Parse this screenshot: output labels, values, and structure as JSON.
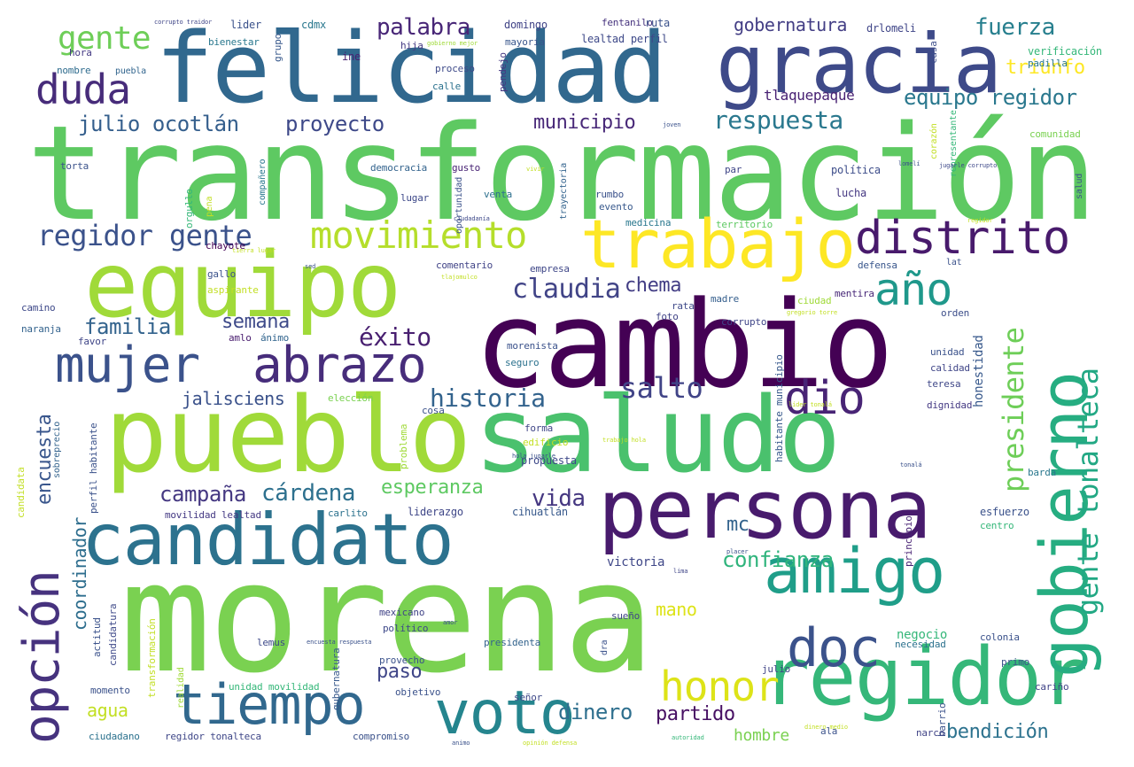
{
  "words": [
    {
      "text": "morena",
      "color": "#7ad151"
    },
    {
      "text": "transformación",
      "color": "#5ec962"
    },
    {
      "text": "cambio",
      "color": "#440154"
    },
    {
      "text": "felicidad",
      "color": "#31688e"
    },
    {
      "text": "saludo",
      "color": "#4ac16d"
    },
    {
      "text": "pueblo",
      "color": "#a0da39"
    },
    {
      "text": "gracia",
      "color": "#3e4a89"
    },
    {
      "text": "equipo",
      "color": "#a0da39"
    },
    {
      "text": "persona",
      "color": "#481b6d"
    },
    {
      "text": "candidato",
      "color": "#2c728e"
    },
    {
      "text": "regidor",
      "color": "#35b779"
    },
    {
      "text": "gobierno",
      "color": "#26ad81"
    },
    {
      "text": "trabajo",
      "color": "#fde725"
    },
    {
      "text": "amigo",
      "color": "#1f9e89"
    },
    {
      "text": "abrazo",
      "color": "#472d7b"
    },
    {
      "text": "mujer",
      "color": "#3b528b"
    },
    {
      "text": "tiempo",
      "color": "#31688e"
    },
    {
      "text": "voto",
      "color": "#25858e"
    },
    {
      "text": "opción",
      "color": "#46327e"
    },
    {
      "text": "distrito",
      "color": "#481a6c"
    },
    {
      "text": "doc",
      "color": "#3b528b"
    },
    {
      "text": "duda",
      "color": "#472c7a"
    },
    {
      "text": "movimiento",
      "color": "#b5de2b"
    },
    {
      "text": "año",
      "color": "#1f988b"
    },
    {
      "text": "dio",
      "color": "#482475"
    },
    {
      "text": "honor",
      "color": "#dde318"
    },
    {
      "text": "presidente",
      "color": "#6ece58"
    },
    {
      "text": "gente tonalteca",
      "color": "#22a884"
    },
    {
      "text": "regidor gente",
      "color": "#3b528b"
    },
    {
      "text": "claudia",
      "color": "#414487"
    },
    {
      "text": "gente",
      "color": "#6ece58"
    },
    {
      "text": "palabra",
      "color": "#482677"
    },
    {
      "text": "fuerza",
      "color": "#277f8e"
    },
    {
      "text": "gobernatura",
      "color": "#433e85"
    },
    {
      "text": "triunfo",
      "color": "#fde725"
    },
    {
      "text": "equipo regidor",
      "color": "#2a788e"
    },
    {
      "text": "julio ocotlán",
      "color": "#355f8d"
    },
    {
      "text": "proyecto",
      "color": "#3e4989"
    },
    {
      "text": "municipio",
      "color": "#482878"
    },
    {
      "text": "respuesta",
      "color": "#2a788e"
    },
    {
      "text": "éxito",
      "color": "#481f70"
    },
    {
      "text": "salto",
      "color": "#414487"
    },
    {
      "text": "historia",
      "color": "#33638d"
    },
    {
      "text": "familia",
      "color": "#33638d"
    },
    {
      "text": "semana",
      "color": "#3e4a89"
    },
    {
      "text": "chema",
      "color": "#433e85"
    },
    {
      "text": "jalisciens",
      "color": "#3b528b"
    },
    {
      "text": "encuesta",
      "color": "#39568c"
    },
    {
      "text": "campaña",
      "color": "#453882"
    },
    {
      "text": "cárdena",
      "color": "#2d708e"
    },
    {
      "text": "esperanza",
      "color": "#5ec962"
    },
    {
      "text": "vida",
      "color": "#453781"
    },
    {
      "text": "coordinador",
      "color": "#2e6e8e"
    },
    {
      "text": "confianza",
      "color": "#2fb47c"
    },
    {
      "text": "mc",
      "color": "#33638d"
    },
    {
      "text": "mano",
      "color": "#dde318"
    },
    {
      "text": "paso",
      "color": "#404688"
    },
    {
      "text": "agua",
      "color": "#c2df23"
    },
    {
      "text": "dinero",
      "color": "#2e6f8e"
    },
    {
      "text": "partido",
      "color": "#471063"
    },
    {
      "text": "hombre",
      "color": "#7ad151"
    },
    {
      "text": "bendición",
      "color": "#2c728e"
    },
    {
      "text": "victoria",
      "color": "#3f4788"
    },
    {
      "text": "negocio",
      "color": "#35b779"
    },
    {
      "text": "honestidad",
      "color": "#38598c"
    },
    {
      "text": "tlaquepaque",
      "color": "#482173"
    },
    {
      "text": "lider",
      "color": "#3b528b"
    },
    {
      "text": "cdmx",
      "color": "#2a788e"
    },
    {
      "text": "domingo",
      "color": "#414487"
    },
    {
      "text": "fentanilo",
      "color": "#46337e"
    },
    {
      "text": "ruta",
      "color": "#3b528b"
    },
    {
      "text": "drlomeli",
      "color": "#404688"
    },
    {
      "text": "bienestar",
      "color": "#2a788e"
    },
    {
      "text": "grupo",
      "color": "#38598c"
    },
    {
      "text": "hija",
      "color": "#443a83"
    },
    {
      "text": "mayoría",
      "color": "#39568c"
    },
    {
      "text": "lealtad perfil",
      "color": "#3e4989"
    },
    {
      "text": "verificación",
      "color": "#35b779"
    },
    {
      "text": "hora",
      "color": "#443983"
    },
    {
      "text": "ine",
      "color": "#481f70"
    },
    {
      "text": "casa",
      "color": "#3d4e8a"
    },
    {
      "text": "padilla",
      "color": "#2a788e"
    },
    {
      "text": "nombre",
      "color": "#2f6c8e"
    },
    {
      "text": "puebla",
      "color": "#32658e"
    },
    {
      "text": "proceso",
      "color": "#3e4a89"
    },
    {
      "text": "pendejo",
      "color": "#453882"
    },
    {
      "text": "calle",
      "color": "#2c728e"
    },
    {
      "text": "comunidad",
      "color": "#7ad151"
    },
    {
      "text": "torta",
      "color": "#3b528b"
    },
    {
      "text": "compañero",
      "color": "#2a788e"
    },
    {
      "text": "democracia",
      "color": "#33638d"
    },
    {
      "text": "gusto",
      "color": "#482374"
    },
    {
      "text": "par",
      "color": "#404688"
    },
    {
      "text": "política",
      "color": "#3d4d8a"
    },
    {
      "text": "orgullo",
      "color": "#35b779"
    },
    {
      "text": "lugar",
      "color": "#3e4989"
    },
    {
      "text": "venta",
      "color": "#2d708e"
    },
    {
      "text": "rumbo",
      "color": "#3b528b"
    },
    {
      "text": "evento",
      "color": "#38598c"
    },
    {
      "text": "lucha",
      "color": "#453882"
    },
    {
      "text": "medicina",
      "color": "#2a788e"
    },
    {
      "text": "territorio",
      "color": "#5ec962"
    },
    {
      "text": "chayote",
      "color": "#440154"
    },
    {
      "text": "gallo",
      "color": "#3b528b"
    },
    {
      "text": "aspirante",
      "color": "#c2df23"
    },
    {
      "text": "comentario",
      "color": "#414487"
    },
    {
      "text": "empresa",
      "color": "#3f4788"
    },
    {
      "text": "defensa",
      "color": "#39568c"
    },
    {
      "text": "lat",
      "color": "#3b528b"
    },
    {
      "text": "camino",
      "color": "#3e4989"
    },
    {
      "text": "naranja",
      "color": "#33638d"
    },
    {
      "text": "favor",
      "color": "#404688"
    },
    {
      "text": "amlo",
      "color": "#481c6e"
    },
    {
      "text": "ánimo",
      "color": "#32658e"
    },
    {
      "text": "madre",
      "color": "#355f8d"
    },
    {
      "text": "ciudad",
      "color": "#a0da39"
    },
    {
      "text": "mentira",
      "color": "#482878"
    },
    {
      "text": "corrupto",
      "color": "#404688"
    },
    {
      "text": "rata",
      "color": "#3e4989"
    },
    {
      "text": "foto",
      "color": "#414487"
    },
    {
      "text": "morenista",
      "color": "#3b528b"
    },
    {
      "text": "seguro",
      "color": "#2c728e"
    },
    {
      "text": "orden",
      "color": "#3d4e8a"
    },
    {
      "text": "unidad",
      "color": "#3b528b"
    },
    {
      "text": "calidad",
      "color": "#404688"
    },
    {
      "text": "teresa",
      "color": "#3f4788"
    },
    {
      "text": "dignidad",
      "color": "#443983"
    },
    {
      "text": "elección",
      "color": "#7ad151"
    },
    {
      "text": "cosa",
      "color": "#3b528b"
    },
    {
      "text": "forma",
      "color": "#404688"
    },
    {
      "text": "edificio",
      "color": "#c2df23"
    },
    {
      "text": "propuesta",
      "color": "#3e4989"
    },
    {
      "text": "problema",
      "color": "#a0da39"
    },
    {
      "text": "habitante municipio",
      "color": "#38598c"
    },
    {
      "text": "esfuerzo",
      "color": "#3b528b"
    },
    {
      "text": "centro",
      "color": "#35b779"
    },
    {
      "text": "barda",
      "color": "#2a788e"
    },
    {
      "text": "liderazgo",
      "color": "#3f4788"
    },
    {
      "text": "cihuatlán",
      "color": "#38598c"
    },
    {
      "text": "carlito",
      "color": "#2c728e"
    },
    {
      "text": "movilidad lealtad",
      "color": "#443983"
    },
    {
      "text": "perfil habitante",
      "color": "#3b528b"
    },
    {
      "text": "sobreprecio",
      "color": "#33638d"
    },
    {
      "text": "candidata",
      "color": "#c2df23"
    },
    {
      "text": "actitud",
      "color": "#3b528b"
    },
    {
      "text": "candidatura",
      "color": "#3e4989"
    },
    {
      "text": "mexicano",
      "color": "#414487"
    },
    {
      "text": "político",
      "color": "#3e4989"
    },
    {
      "text": "presidenta",
      "color": "#33638d"
    },
    {
      "text": "necesidad",
      "color": "#2c728e"
    },
    {
      "text": "colonia",
      "color": "#3b528b"
    },
    {
      "text": "sueño",
      "color": "#404688"
    },
    {
      "text": "principio",
      "color": "#482374"
    },
    {
      "text": "lemus",
      "color": "#3e4989"
    },
    {
      "text": "provecho",
      "color": "#3b528b"
    },
    {
      "text": "julio",
      "color": "#414487"
    },
    {
      "text": "primo",
      "color": "#3b528b"
    },
    {
      "text": "cariño",
      "color": "#414487"
    },
    {
      "text": "momento",
      "color": "#3b528b"
    },
    {
      "text": "transformación",
      "color": "#c2df23"
    },
    {
      "text": "unidad movilidad",
      "color": "#35b779"
    },
    {
      "text": "objetivo",
      "color": "#3b528b"
    },
    {
      "text": "señor",
      "color": "#3e4989"
    },
    {
      "text": "barrio",
      "color": "#3b528b"
    },
    {
      "text": "narco",
      "color": "#414487"
    },
    {
      "text": "ala",
      "color": "#3b528b"
    },
    {
      "text": "ciudadano",
      "color": "#2c728e"
    },
    {
      "text": "regidor tonalteca",
      "color": "#3f4788"
    },
    {
      "text": "compromiso",
      "color": "#3b528b"
    },
    {
      "text": "gubernatura",
      "color": "#38598c"
    },
    {
      "text": "representante",
      "color": "#35b779"
    },
    {
      "text": "salud",
      "color": "#3b528b"
    },
    {
      "text": "corazón",
      "color": "#c2df23"
    },
    {
      "text": "trayectoria",
      "color": "#33638d"
    },
    {
      "text": "oportunidad",
      "color": "#3b528b"
    },
    {
      "text": "pena",
      "color": "#c2df23"
    },
    {
      "text": "realidad",
      "color": "#a0da39"
    },
    {
      "text": "dra",
      "color": "#3b528b"
    },
    {
      "text": "ciudadanía",
      "color": "#3e4989"
    },
    {
      "text": "lomelí",
      "color": "#3b528b"
    },
    {
      "text": "corrupto traidor",
      "color": "#404688"
    },
    {
      "text": "jugarle corrupto",
      "color": "#3e4989"
    },
    {
      "text": "gobierno mejor",
      "color": "#a0da39"
    },
    {
      "text": "tierra lugar",
      "color": "#c2df23"
    },
    {
      "text": "vivir",
      "color": "#c2df23"
    },
    {
      "text": "tonalá",
      "color": "#3b528b"
    },
    {
      "text": "regidor",
      "color": "#c2df23"
    },
    {
      "text": "placer",
      "color": "#3b528b"
    },
    {
      "text": "lima",
      "color": "#404688"
    },
    {
      "text": "gregorio torre",
      "color": "#c2df23"
    },
    {
      "text": "encuesta respuesta",
      "color": "#3b528b"
    },
    {
      "text": "tlajomulco",
      "color": "#c2df23"
    },
    {
      "text": "hola jugarle",
      "color": "#3b528b"
    },
    {
      "text": "trabajo hola",
      "color": "#c2df23"
    },
    {
      "text": "sed",
      "color": "#3b528b"
    },
    {
      "text": "autoridad",
      "color": "#35b779"
    },
    {
      "text": "opinión defensa",
      "color": "#c2df23"
    },
    {
      "text": "joven",
      "color": "#3b528b"
    },
    {
      "text": "dinero medio",
      "color": "#c2df23"
    },
    {
      "text": "animo",
      "color": "#3b528b"
    },
    {
      "text": "líder tonalá",
      "color": "#c2df23"
    },
    {
      "text": "amor",
      "color": "#3b528b"
    }
  ]
}
